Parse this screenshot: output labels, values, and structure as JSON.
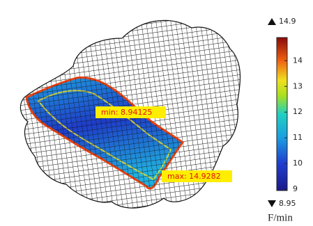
{
  "chart_data": {
    "type": "surface",
    "colorbar": {
      "lim": [
        8.95,
        14.9
      ],
      "ticks": [
        9,
        10,
        11,
        12,
        13,
        14
      ],
      "label": "F/min"
    },
    "annotations": [
      "min: 8.94125",
      "max: 14.9282"
    ]
  }
}
